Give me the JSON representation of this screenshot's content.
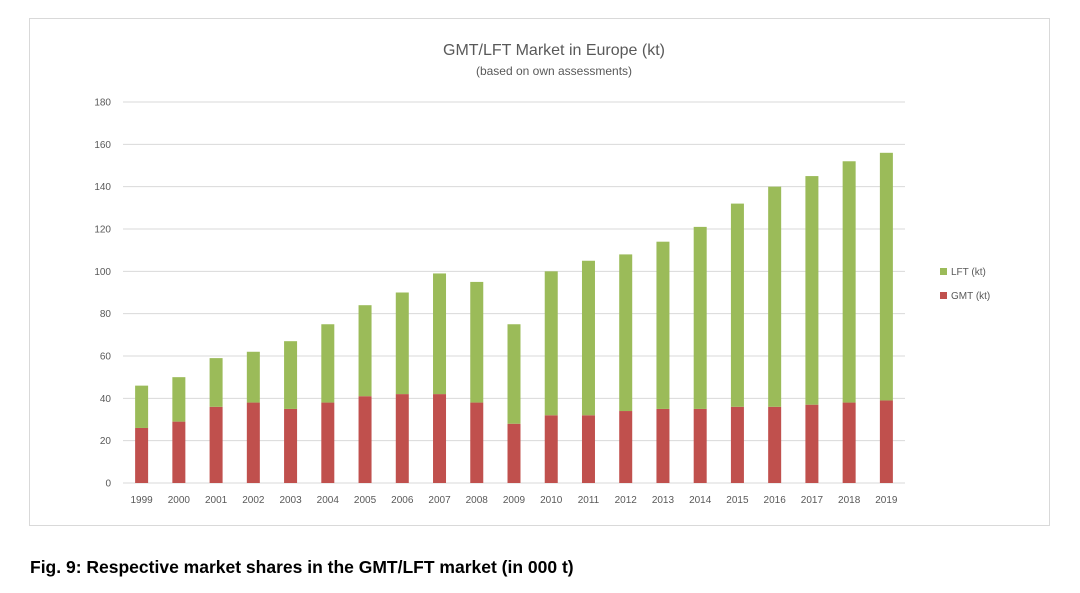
{
  "caption": "Fig.  9: Respective market shares in the GMT/LFT market (in 000 t)",
  "chart_data": {
    "type": "bar",
    "stacked": true,
    "title": "GMT/LFT Market in Europe (kt)",
    "subtitle": "(based on own assessments)",
    "xlabel": "",
    "ylabel": "",
    "ylim": [
      0,
      180
    ],
    "yticks": [
      0,
      20,
      40,
      60,
      80,
      100,
      120,
      140,
      160,
      180
    ],
    "grid": true,
    "legend_position": "right",
    "categories": [
      "1999",
      "2000",
      "2001",
      "2002",
      "2003",
      "2004",
      "2005",
      "2006",
      "2007",
      "2008",
      "2009",
      "2010",
      "2011",
      "2012",
      "2013",
      "2014",
      "2015",
      "2016",
      "2017",
      "2018",
      "2019"
    ],
    "series": [
      {
        "name": "GMT (kt)",
        "color": "#c0504d",
        "values": [
          26,
          29,
          36,
          38,
          35,
          38,
          41,
          42,
          42,
          38,
          28,
          32,
          32,
          34,
          35,
          35,
          36,
          36,
          37,
          38,
          39
        ]
      },
      {
        "name": "LFT (kt)",
        "color": "#9bbb59",
        "values": [
          20,
          21,
          23,
          24,
          32,
          37,
          43,
          48,
          57,
          57,
          47,
          68,
          73,
          74,
          79,
          86,
          96,
          104,
          108,
          114,
          117
        ]
      }
    ]
  }
}
